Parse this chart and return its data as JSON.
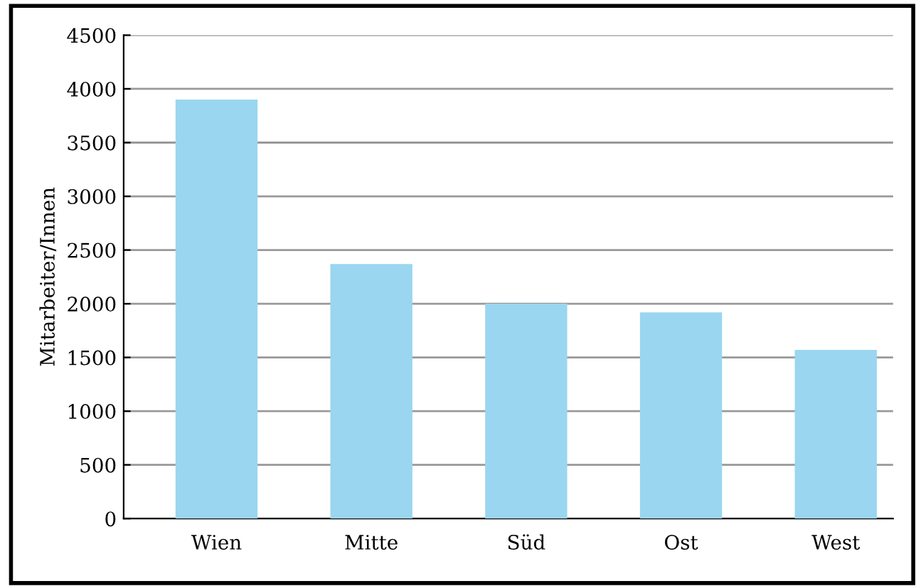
{
  "chart_data": {
    "type": "bar",
    "ylabel": "Mitarbeiter/Innen",
    "categories": [
      "Wien",
      "Mitte",
      "Süd",
      "Ost",
      "West"
    ],
    "values": [
      3900,
      2370,
      2000,
      1920,
      1570
    ],
    "color": "#9ad6f0",
    "ylim": [
      0,
      4500
    ],
    "yticks": [
      0,
      500,
      1000,
      1500,
      2000,
      2500,
      3000,
      3500,
      4000,
      4500
    ],
    "grid": "y"
  }
}
